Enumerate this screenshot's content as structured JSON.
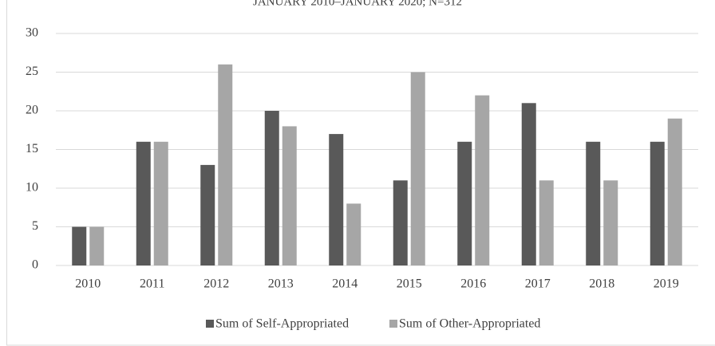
{
  "chart_data": {
    "type": "bar",
    "title": "JANUARY 2010–JANUARY 2020; N=312",
    "categories": [
      "2010",
      "2011",
      "2012",
      "2013",
      "2014",
      "2015",
      "2016",
      "2017",
      "2018",
      "2019"
    ],
    "series": [
      {
        "name": "Sum of Self-Appropriated",
        "color": "#595959",
        "values": [
          5,
          16,
          13,
          20,
          17,
          11,
          16,
          21,
          16,
          16
        ]
      },
      {
        "name": "Sum of Other-Appropriated",
        "color": "#a6a6a6",
        "values": [
          5,
          16,
          26,
          18,
          8,
          25,
          22,
          11,
          11,
          19
        ]
      }
    ],
    "ylim": [
      0,
      30
    ],
    "yticks": [
      0,
      5,
      10,
      15,
      20,
      25,
      30
    ],
    "grid": true,
    "legend": "bottom"
  }
}
